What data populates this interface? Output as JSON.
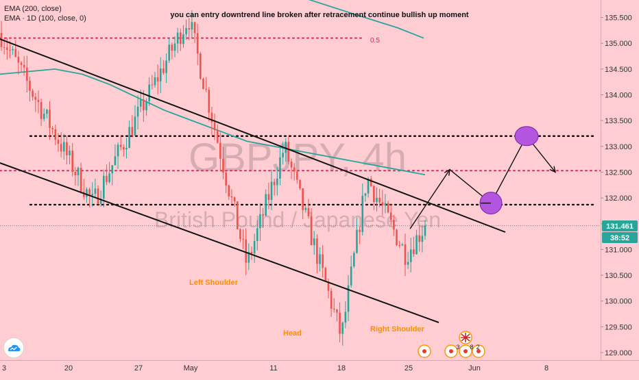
{
  "legend": {
    "ema_200": "EMA (200, close)",
    "ema_1d": "EMA · 1D (100, close, 0)"
  },
  "annotation": "you can entry downtrend line broken after retracement continue bullish up moment",
  "watermark": {
    "symbol": "GBPJPY, 4h",
    "name": "British Pound / Japanese Yen"
  },
  "chart_labels": {
    "left_shoulder": "Left Shoulder",
    "head": "Head",
    "right_shoulder": "Right Shoulder",
    "fib_level": "0.5"
  },
  "price_badge": {
    "price": "131.461",
    "countdown": "38:52"
  },
  "event_badge_counts": [
    "3",
    "8",
    "2"
  ],
  "colors": {
    "background": "#ffcdd2",
    "bull": "#26a69a",
    "bear": "#ef5350",
    "ema": "#26a69a",
    "fib": "#e91e63",
    "label": "#ff8f00",
    "ellipse": "#b455e0",
    "badge": "#26a69a"
  },
  "chart_data": {
    "type": "candlestick",
    "symbol": "GBPJPY",
    "timeframe": "4h",
    "x_tick_labels": [
      "3",
      "20",
      "27",
      "May",
      "11",
      "18",
      "25",
      "Jun",
      "8"
    ],
    "y_ticks": [
      129.0,
      129.5,
      130.0,
      130.5,
      131.0,
      131.5,
      132.0,
      132.5,
      133.0,
      133.5,
      134.0,
      134.5,
      135.0,
      135.5
    ],
    "ylim": [
      128.85,
      136.1
    ],
    "last_price": 131.461,
    "levels": {
      "fib_0_5": 135.1,
      "resistance_upper": 133.2,
      "fib_level_2": 132.53,
      "support": 131.87
    },
    "key_points": [
      {
        "label": "start",
        "price": 135.2
      },
      {
        "label": "dip",
        "price": 131.9
      },
      {
        "label": "spike",
        "price": 135.5
      },
      {
        "label": "left_shoulder",
        "price": 130.7
      },
      {
        "label": "rebound",
        "price": 133.0
      },
      {
        "label": "head",
        "price": 129.3
      },
      {
        "label": "rebound_2",
        "price": 132.4
      },
      {
        "label": "right_shoulder",
        "price": 130.9
      },
      {
        "label": "last",
        "price": 131.461
      }
    ],
    "projection": [
      131.4,
      132.55,
      131.9,
      133.2,
      132.5
    ],
    "ema_200": [
      135.85,
      135.55,
      135.3,
      135.1
    ],
    "ema_1d": [
      134.4,
      134.45,
      134.5,
      134.4,
      134.2,
      133.95,
      133.7,
      133.5,
      133.3,
      133.1,
      132.9,
      132.7,
      132.55,
      132.45
    ]
  }
}
